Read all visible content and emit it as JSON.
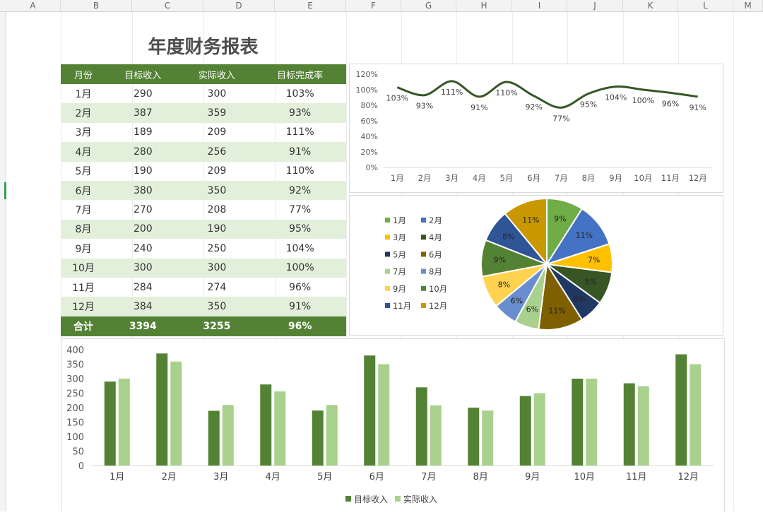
{
  "sheet": {
    "columns": [
      "A",
      "B",
      "C",
      "D",
      "E",
      "F",
      "G",
      "H",
      "I",
      "J",
      "K",
      "L",
      "M"
    ]
  },
  "report": {
    "title": "年度财务报表",
    "headers": [
      "月份",
      "目标收入",
      "实际收入",
      "目标完成率"
    ],
    "rows": [
      [
        "1月",
        "290",
        "300",
        "103%"
      ],
      [
        "2月",
        "387",
        "359",
        "93%"
      ],
      [
        "3月",
        "189",
        "209",
        "111%"
      ],
      [
        "4月",
        "280",
        "256",
        "91%"
      ],
      [
        "5月",
        "190",
        "209",
        "110%"
      ],
      [
        "6月",
        "380",
        "350",
        "92%"
      ],
      [
        "7月",
        "270",
        "208",
        "77%"
      ],
      [
        "8月",
        "200",
        "190",
        "95%"
      ],
      [
        "9月",
        "240",
        "250",
        "104%"
      ],
      [
        "10月",
        "300",
        "300",
        "100%"
      ],
      [
        "11月",
        "284",
        "274",
        "96%"
      ],
      [
        "12月",
        "384",
        "350",
        "91%"
      ]
    ],
    "total": [
      "合计",
      "3394",
      "3255",
      "96%"
    ]
  },
  "chart_data": [
    {
      "type": "line",
      "categories": [
        "1月",
        "2月",
        "3月",
        "4月",
        "5月",
        "6月",
        "7月",
        "8月",
        "9月",
        "10月",
        "11月",
        "12月"
      ],
      "series": [
        {
          "values": [
            103,
            93,
            111,
            91,
            110,
            92,
            77,
            95,
            104,
            100,
            96,
            91
          ]
        }
      ],
      "data_labels": [
        "103%",
        "93%",
        "111%",
        "91%",
        "110%",
        "92%",
        "77%",
        "95%",
        "104%",
        "100%",
        "96%",
        "91%"
      ],
      "y_ticks": [
        "0%",
        "20%",
        "40%",
        "60%",
        "80%",
        "100%",
        "120%"
      ],
      "ylim": [
        0,
        120
      ],
      "smooth": true,
      "color": "#375623",
      "title": "",
      "xlabel": "",
      "ylabel": ""
    },
    {
      "type": "pie",
      "categories": [
        "1月",
        "2月",
        "3月",
        "4月",
        "5月",
        "6月",
        "7月",
        "8月",
        "9月",
        "10月",
        "11月",
        "12月"
      ],
      "values": [
        9,
        11,
        7,
        8,
        6,
        11,
        6,
        6,
        8,
        9,
        8,
        11
      ],
      "data_labels": [
        "9%",
        "11%",
        "7%",
        "8%",
        "6%",
        "11%",
        "6%",
        "6%",
        "8%",
        "9%",
        "8%",
        "11%"
      ],
      "colors": [
        "#70ad47",
        "#4472c4",
        "#ffc000",
        "#375623",
        "#203864",
        "#7f6000",
        "#a9d18e",
        "#698ed0",
        "#ffd34f",
        "#548235",
        "#2f5597",
        "#c99800"
      ],
      "legend": "left",
      "title": ""
    },
    {
      "type": "bar",
      "categories": [
        "1月",
        "2月",
        "3月",
        "4月",
        "5月",
        "6月",
        "7月",
        "8月",
        "9月",
        "10月",
        "11月",
        "12月"
      ],
      "series": [
        {
          "name": "目标收入",
          "values": [
            290,
            387,
            189,
            280,
            190,
            380,
            270,
            200,
            240,
            300,
            284,
            384
          ],
          "color": "#548235"
        },
        {
          "name": "实际收入",
          "values": [
            300,
            359,
            209,
            256,
            209,
            350,
            208,
            190,
            250,
            300,
            274,
            350
          ],
          "color": "#a9d18e"
        }
      ],
      "y_ticks": [
        "0",
        "50",
        "100",
        "150",
        "200",
        "250",
        "300",
        "350",
        "400"
      ],
      "ylim": [
        0,
        400
      ],
      "legend": "bottom",
      "title": "",
      "xlabel": "",
      "ylabel": ""
    }
  ]
}
